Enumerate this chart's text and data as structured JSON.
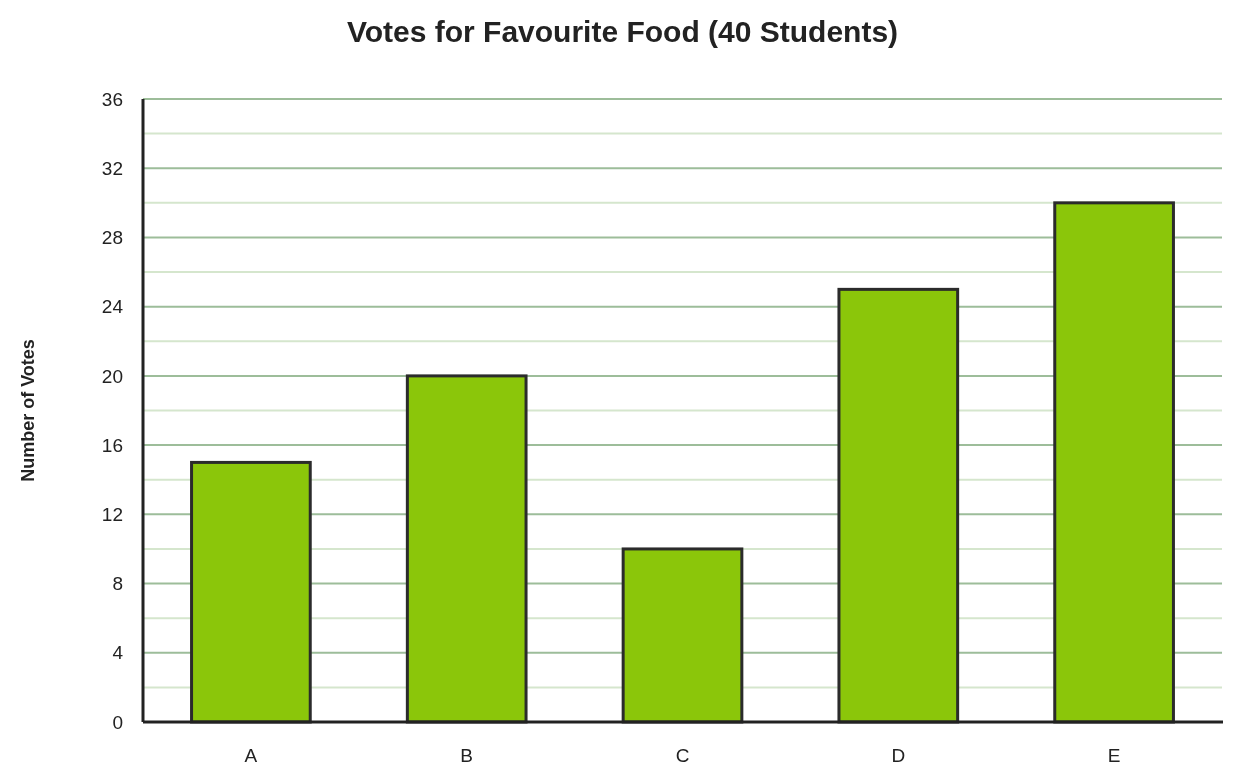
{
  "chart_data": {
    "type": "bar",
    "title": "Votes for Favourite Food (40 Students)",
    "ylabel": "Number of Votes",
    "categories": [
      "A",
      "B",
      "C",
      "D",
      "E"
    ],
    "values": [
      15,
      20,
      10,
      25,
      30
    ],
    "color": "#8bc60a",
    "ylim": [
      0,
      36
    ],
    "yticks": [
      0,
      {
        "value": 2,
        "label": null
      },
      4,
      {
        "value": 6,
        "label": null
      },
      8,
      {
        "value": 10,
        "label": null
      },
      12,
      {
        "value": 14,
        "label": null
      },
      16,
      {
        "value": 18,
        "label": null
      },
      20,
      {
        "value": 22,
        "label": null
      },
      24,
      {
        "value": 26,
        "label": null
      },
      28,
      {
        "value": 30,
        "label": null
      },
      32,
      {
        "value": 34,
        "label": null
      },
      36
    ],
    "grid": "y"
  }
}
